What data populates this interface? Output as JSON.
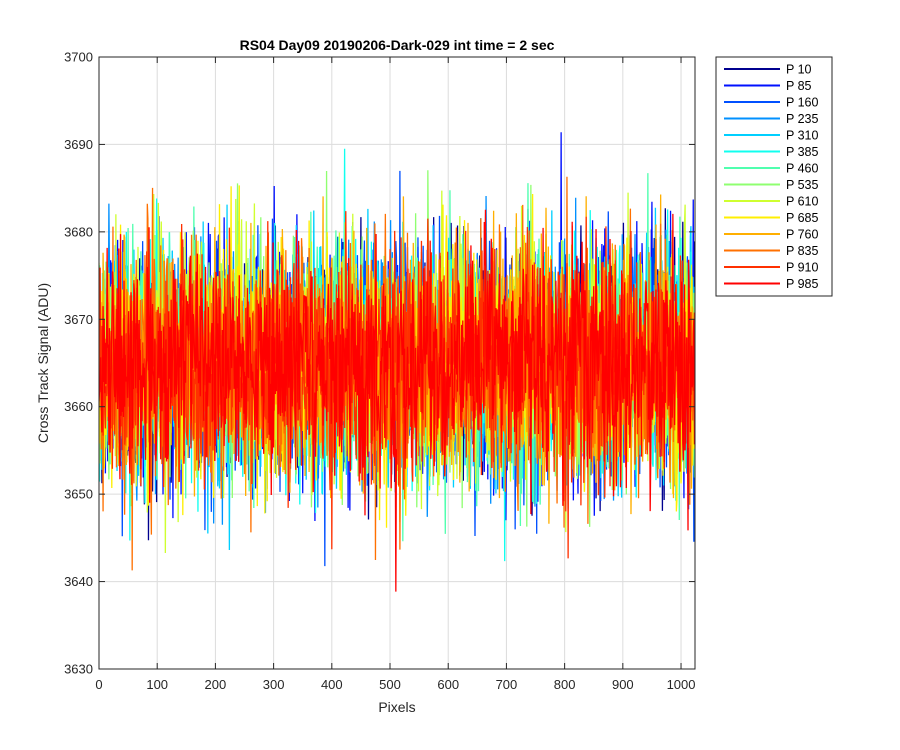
{
  "chart_data": {
    "type": "line",
    "title": "RS04 Day09 20190206-Dark-029 int time = 2 sec",
    "xlabel": "Pixels",
    "ylabel": "Cross Track Signal (ADU)",
    "xlim": [
      0,
      1024
    ],
    "ylim": [
      3630,
      3700
    ],
    "xticks": [
      "0",
      "100",
      "200",
      "300",
      "400",
      "500",
      "600",
      "700",
      "800",
      "900",
      "1000"
    ],
    "yticks": [
      "3630",
      "3640",
      "3650",
      "3660",
      "3670",
      "3680",
      "3690",
      "3700"
    ],
    "grid": true,
    "legend_position": "outside-top-right",
    "noise_model": {
      "num_points": 1024,
      "mean": 3665,
      "spread": 6.5
    },
    "series": [
      {
        "name": "P 10",
        "color": "#00008f"
      },
      {
        "name": "P 85",
        "color": "#0010ff"
      },
      {
        "name": "P 160",
        "color": "#0050ff"
      },
      {
        "name": "P 235",
        "color": "#0090ff"
      },
      {
        "name": "P 310",
        "color": "#00cfff"
      },
      {
        "name": "P 385",
        "color": "#10ffef"
      },
      {
        "name": "P 460",
        "color": "#50ffaf"
      },
      {
        "name": "P 535",
        "color": "#8fff70"
      },
      {
        "name": "P 610",
        "color": "#cfff30"
      },
      {
        "name": "P 685",
        "color": "#ffef00"
      },
      {
        "name": "P 760",
        "color": "#ffaf00"
      },
      {
        "name": "P 835",
        "color": "#ff7000"
      },
      {
        "name": "P 910",
        "color": "#ff3000"
      },
      {
        "name": "P 985",
        "color": "#ff0000"
      }
    ]
  }
}
